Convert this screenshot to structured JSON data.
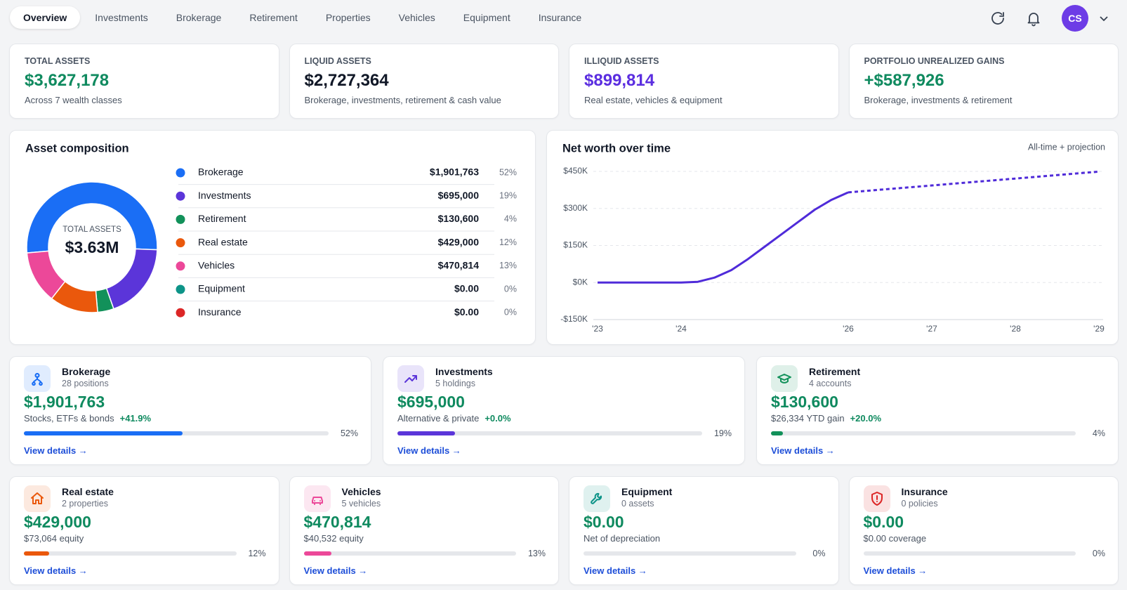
{
  "nav": {
    "tabs": [
      "Overview",
      "Investments",
      "Brokerage",
      "Retirement",
      "Properties",
      "Vehicles",
      "Equipment",
      "Insurance"
    ],
    "avatar": "CS"
  },
  "summary": [
    {
      "label": "TOTAL ASSETS",
      "value": "$3,627,178",
      "note": "Across 7 wealth classes",
      "color": "#0f8a5f"
    },
    {
      "label": "LIQUID ASSETS",
      "value": "$2,727,364",
      "note": "Brokerage, investments, retirement & cash value",
      "color": "#111827"
    },
    {
      "label": "ILLIQUID ASSETS",
      "value": "$899,814",
      "note": "Real estate, vehicles & equipment",
      "color": "#5b2ee0"
    },
    {
      "label": "PORTFOLIO UNREALIZED GAINS",
      "value": "+$587,926",
      "note": "Brokerage, investments & retirement",
      "color": "#0f8a5f"
    }
  ],
  "chart_data": [
    {
      "type": "pie",
      "title": "Asset composition",
      "center_label": "TOTAL ASSETS",
      "center_value": "$3.63M",
      "categories": [
        "Brokerage",
        "Investments",
        "Retirement",
        "Real estate",
        "Vehicles",
        "Equipment",
        "Insurance"
      ],
      "colors": [
        "#1a6ef5",
        "#5b35d9",
        "#12915a",
        "#ea580c",
        "#ec4899",
        "#0d9488",
        "#dc2626"
      ],
      "values": [
        52,
        19,
        4,
        12,
        13,
        0,
        0
      ],
      "value_labels": [
        "52%",
        "19%",
        "4%",
        "12%",
        "13%",
        "0%",
        "0%"
      ],
      "amounts": [
        "$1,901,763",
        "$695,000",
        "$130,600",
        "$429,000",
        "$470,814",
        "$0.00",
        "$0.00"
      ]
    },
    {
      "type": "line",
      "title": "Net worth over time",
      "subtitle": "All-time + projection",
      "x": [
        2023,
        2023.5,
        2024,
        2024.2,
        2024.4,
        2024.6,
        2024.8,
        2025,
        2025.2,
        2025.4,
        2025.6,
        2025.8,
        2026,
        2027,
        2028,
        2029
      ],
      "xlim": [
        2023,
        2029
      ],
      "xticks": [
        {
          "value": 2023,
          "label": "'23"
        },
        {
          "value": 2024,
          "label": "'24"
        },
        {
          "value": 2026,
          "label": "'26"
        },
        {
          "value": 2027,
          "label": "'27"
        },
        {
          "value": 2028,
          "label": "'28"
        },
        {
          "value": 2029,
          "label": "'29"
        }
      ],
      "ylim": [
        -150000,
        450000
      ],
      "yticks": [
        {
          "value": -150000,
          "label": "-$150K"
        },
        {
          "value": 0,
          "label": "$0K"
        },
        {
          "value": 150000,
          "label": "$150K"
        },
        {
          "value": 300000,
          "label": "$300K"
        },
        {
          "value": 450000,
          "label": "$450K"
        }
      ],
      "grid": true,
      "series": [
        {
          "color": "#4f2bd9",
          "style": "solid",
          "values": [
            0,
            0,
            0,
            3000,
            20000,
            50000,
            95000,
            145000,
            195000,
            245000,
            295000,
            335000,
            365000,
            null,
            null,
            null
          ]
        },
        {
          "color": "#4f2bd9",
          "style": "dashed",
          "values": [
            null,
            null,
            null,
            null,
            null,
            null,
            null,
            null,
            null,
            null,
            null,
            null,
            365000,
            393000,
            421000,
            449000
          ]
        }
      ]
    }
  ],
  "classes": [
    {
      "title": "Brokerage",
      "subtitle": "28 positions",
      "amount": "$1,901,763",
      "note": "Stocks, ETFs & bonds",
      "change": "+41.9%",
      "progress": 52,
      "progress_label": "52%",
      "color": "#1a6ef5",
      "link": "View details →"
    },
    {
      "title": "Investments",
      "subtitle": "5 holdings",
      "amount": "$695,000",
      "note": "Alternative & private",
      "change": "+0.0%",
      "progress": 19,
      "progress_label": "19%",
      "color": "#5b35d9",
      "link": "View details →"
    },
    {
      "title": "Retirement",
      "subtitle": "4 accounts",
      "amount": "$130,600",
      "note": "$26,334 YTD gain",
      "change": "+20.0%",
      "progress": 4,
      "progress_label": "4%",
      "color": "#12915a",
      "link": "View details →"
    },
    {
      "title": "Real estate",
      "subtitle": "2 properties",
      "amount": "$429,000",
      "note": "$73,064 equity",
      "progress": 12,
      "progress_label": "12%",
      "color": "#ea580c",
      "link": "View details →"
    },
    {
      "title": "Vehicles",
      "subtitle": "5 vehicles",
      "amount": "$470,814",
      "note": "$40,532 equity",
      "progress": 13,
      "progress_label": "13%",
      "color": "#ec4899",
      "link": "View details →"
    },
    {
      "title": "Equipment",
      "subtitle": "0 assets",
      "amount": "$0.00",
      "note": "Net of depreciation",
      "progress": 0,
      "progress_label": "0%",
      "color": "#0d9488",
      "link": "View details →"
    },
    {
      "title": "Insurance",
      "subtitle": "0 policies",
      "amount": "$0.00",
      "note": "$0.00 coverage",
      "progress": 0,
      "progress_label": "0%",
      "color": "#dc2626",
      "link": "View details →"
    }
  ]
}
